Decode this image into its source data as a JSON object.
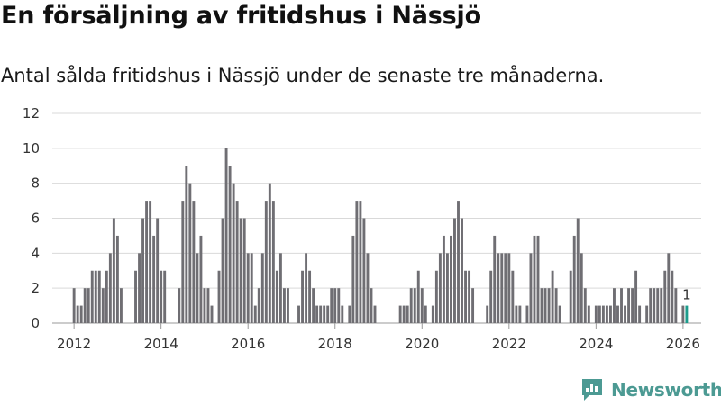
{
  "title": "En försäljning av fritidshus i Nässjö",
  "subtitle": "Antal sålda fritidshus i Nässjö under de senaste tre månaderna.",
  "brand": {
    "name": "Newsworthy",
    "color": "#4c9a93"
  },
  "colors": {
    "bar": "#6f6e73",
    "highlight": "#1d9c8c",
    "grid": "#d9d9d9"
  },
  "chart_data": {
    "type": "bar",
    "title": "",
    "xlabel": "",
    "ylabel": "",
    "ylim": [
      0,
      12
    ],
    "yticks": [
      0,
      2,
      4,
      6,
      8,
      10,
      12
    ],
    "xlim": [
      "2011-07",
      "2026-06"
    ],
    "xticks": [
      "2012",
      "2014",
      "2016",
      "2018",
      "2020",
      "2022",
      "2024",
      "2026"
    ],
    "grid": true,
    "legend": "none",
    "start": "2012-01",
    "values": [
      2,
      1,
      1,
      2,
      2,
      3,
      3,
      3,
      2,
      3,
      4,
      6,
      5,
      2,
      0,
      0,
      0,
      3,
      4,
      6,
      7,
      7,
      5,
      6,
      3,
      3,
      0,
      0,
      0,
      2,
      7,
      9,
      8,
      7,
      4,
      5,
      2,
      2,
      1,
      0,
      3,
      6,
      10,
      9,
      8,
      7,
      6,
      6,
      4,
      4,
      1,
      2,
      4,
      7,
      8,
      7,
      3,
      4,
      2,
      2,
      0,
      0,
      1,
      3,
      4,
      3,
      2,
      1,
      1,
      1,
      1,
      2,
      2,
      2,
      1,
      0,
      1,
      5,
      7,
      7,
      6,
      4,
      2,
      1,
      0,
      0,
      0,
      0,
      0,
      0,
      1,
      1,
      1,
      2,
      2,
      3,
      2,
      1,
      0,
      1,
      3,
      4,
      5,
      4,
      5,
      6,
      7,
      6,
      3,
      3,
      2,
      0,
      0,
      0,
      1,
      3,
      5,
      4,
      4,
      4,
      4,
      3,
      1,
      1,
      0,
      1,
      4,
      5,
      5,
      2,
      2,
      2,
      3,
      2,
      1,
      0,
      0,
      3,
      5,
      6,
      4,
      2,
      1,
      0,
      1,
      1,
      1,
      1,
      1,
      2,
      1,
      2,
      1,
      2,
      2,
      3,
      1,
      0,
      1,
      2,
      2,
      2,
      2,
      3,
      4,
      3,
      2,
      0,
      1,
      1
    ],
    "highlight": {
      "x": "2026-02",
      "value": 1,
      "label": "1"
    }
  }
}
